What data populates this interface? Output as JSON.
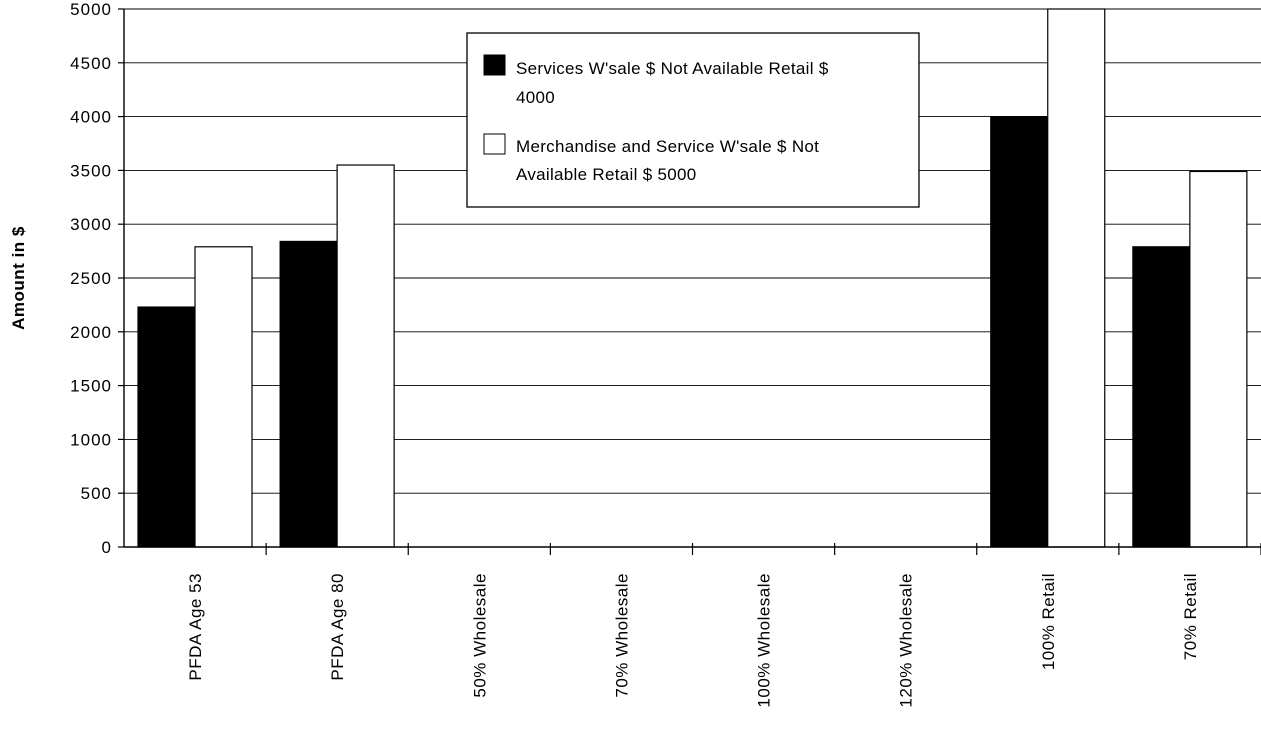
{
  "chart_data": {
    "type": "bar",
    "title": "",
    "xlabel": "",
    "ylabel": "Amount in $",
    "ylim": [
      0,
      5000
    ],
    "yticks": [
      "0",
      "500",
      "1000",
      "1500",
      "2000",
      "2500",
      "3000",
      "3500",
      "4000",
      "4500",
      "5000"
    ],
    "grid": true,
    "legend_position": "top-center",
    "categories": [
      "PFDA Age 53",
      "PFDA Age 80",
      "50% Wholesale",
      "70% Wholesale",
      "100% Wholesale",
      "120% Wholesale",
      "100% Retail",
      "70% Retail"
    ],
    "series": [
      {
        "legend_lines": [
          "Services W'sale $ Not Available Retail $",
          "4000"
        ],
        "color": "#000000",
        "values": [
          2230,
          2840,
          0,
          0,
          0,
          0,
          4000,
          2790
        ]
      },
      {
        "legend_lines": [
          "Merchandise and Service W'sale $ Not",
          "Available Retail $ 5000"
        ],
        "color": "#ffffff",
        "values": [
          2790,
          3550,
          0,
          0,
          0,
          0,
          5000,
          3490
        ]
      }
    ]
  }
}
